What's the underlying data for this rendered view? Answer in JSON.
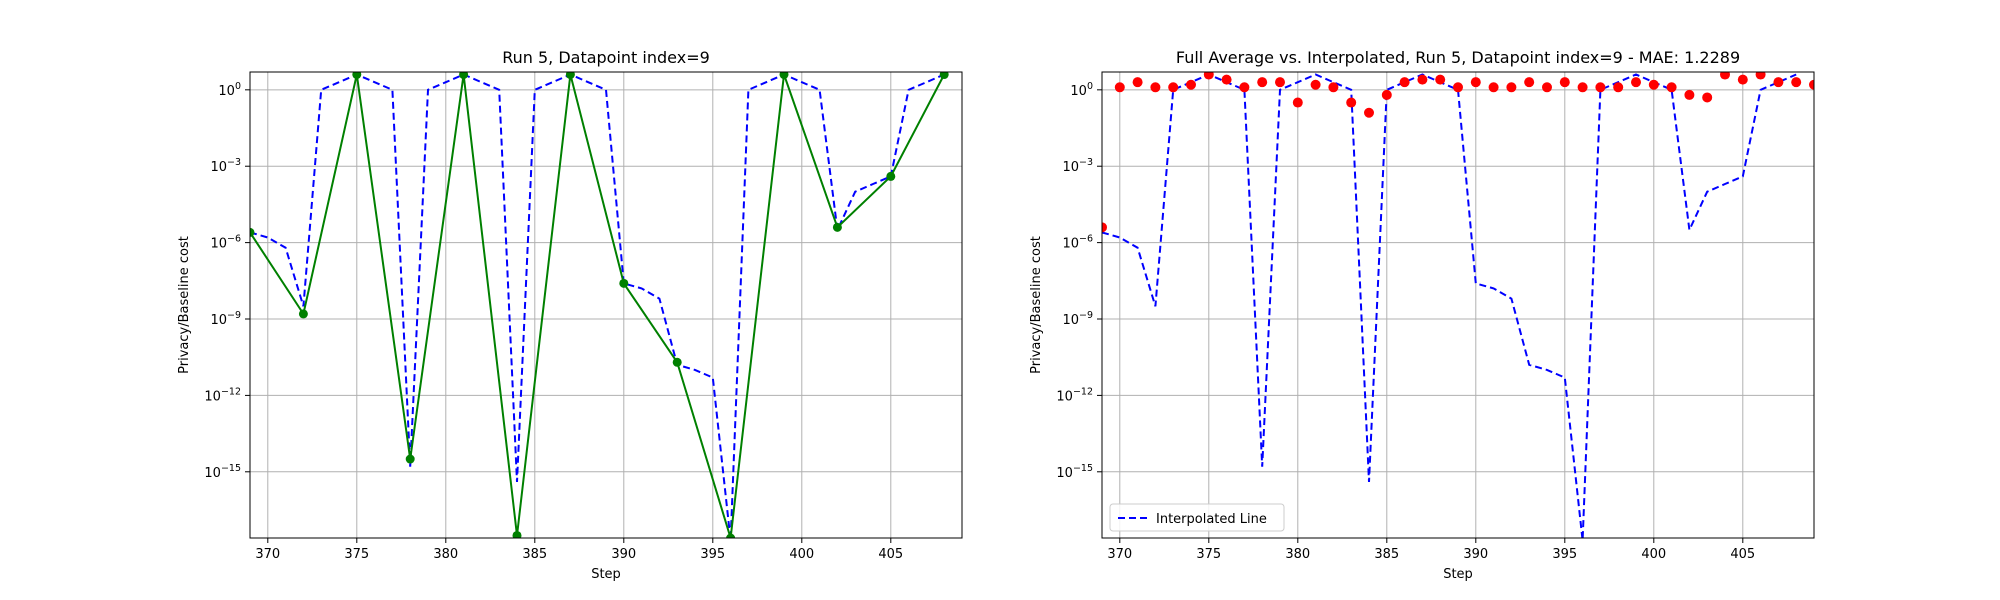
{
  "chart_data": [
    {
      "type": "line",
      "title": "Run 5, Datapoint index=9",
      "xlabel": "Step",
      "ylabel": "Privacy/Baseline cost",
      "yscale": "log",
      "xlim": [
        369,
        409
      ],
      "ylim_log10": [
        -17.6,
        0.7
      ],
      "xticks": [
        370,
        375,
        380,
        385,
        390,
        395,
        400,
        405
      ],
      "yticks_exp": [
        0,
        -3,
        -6,
        -9,
        -12,
        -15
      ],
      "grid": true,
      "series": [
        {
          "style": "dashed",
          "color": "#0000ff",
          "x": [
            369,
            370,
            371,
            372,
            373,
            374,
            375,
            376,
            377,
            378,
            379,
            380,
            381,
            382,
            383,
            384,
            385,
            386,
            387,
            388,
            389,
            390,
            391,
            392,
            393,
            394,
            395,
            396,
            397,
            398,
            399,
            400,
            401,
            402,
            403,
            404,
            405,
            406,
            407,
            408
          ],
          "log10_y": [
            -5.6,
            -5.8,
            -6.2,
            -8.5,
            0.0,
            0.3,
            0.6,
            0.3,
            0.0,
            -14.8,
            0.0,
            0.3,
            0.6,
            0.3,
            0.0,
            -15.4,
            0.0,
            0.3,
            0.6,
            0.3,
            0.0,
            -7.6,
            -7.8,
            -8.2,
            -10.8,
            -11.0,
            -11.3,
            -17.7,
            0.0,
            0.3,
            0.6,
            0.3,
            0.0,
            -5.5,
            -4.0,
            -3.7,
            -3.4,
            0.0,
            0.3,
            0.6
          ]
        },
        {
          "style": "solid-markers",
          "color": "#008000",
          "x": [
            369,
            372,
            375,
            378,
            381,
            384,
            387,
            390,
            393,
            396,
            399,
            402,
            405,
            408
          ],
          "log10_y": [
            -5.6,
            -8.8,
            0.6,
            -14.5,
            0.6,
            -17.5,
            0.6,
            -7.6,
            -10.7,
            -17.6,
            0.6,
            -5.4,
            -3.4,
            0.6
          ]
        }
      ]
    },
    {
      "type": "line",
      "title": "Full Average vs. Interpolated, Run 5, Datapoint index=9 - MAE: 1.2289",
      "xlabel": "Step",
      "ylabel": "Privacy/Baseline cost",
      "yscale": "log",
      "xlim": [
        369,
        409
      ],
      "ylim_log10": [
        -17.6,
        0.7
      ],
      "xticks": [
        370,
        375,
        380,
        385,
        390,
        395,
        400,
        405
      ],
      "yticks_exp": [
        0,
        -3,
        -6,
        -9,
        -12,
        -15
      ],
      "grid": true,
      "legend": {
        "position": "lower-left",
        "entries": [
          "Interpolated Line"
        ]
      },
      "series": [
        {
          "name": "Interpolated Line",
          "style": "dashed",
          "color": "#0000ff",
          "x": [
            369,
            370,
            371,
            372,
            373,
            374,
            375,
            376,
            377,
            378,
            379,
            380,
            381,
            382,
            383,
            384,
            385,
            386,
            387,
            388,
            389,
            390,
            391,
            392,
            393,
            394,
            395,
            396,
            397,
            398,
            399,
            400,
            401,
            402,
            403,
            404,
            405,
            406,
            407,
            408
          ],
          "log10_y": [
            -5.6,
            -5.8,
            -6.2,
            -8.5,
            0.0,
            0.3,
            0.6,
            0.3,
            0.0,
            -14.8,
            0.0,
            0.3,
            0.6,
            0.3,
            0.0,
            -15.4,
            0.0,
            0.3,
            0.6,
            0.3,
            0.0,
            -7.6,
            -7.8,
            -8.2,
            -10.8,
            -11.0,
            -11.3,
            -17.7,
            0.0,
            0.3,
            0.6,
            0.3,
            0.0,
            -5.5,
            -4.0,
            -3.7,
            -3.4,
            0.0,
            0.3,
            0.6
          ]
        },
        {
          "style": "scatter",
          "color": "#ff0000",
          "x": [
            369,
            370,
            371,
            372,
            373,
            374,
            375,
            376,
            377,
            378,
            379,
            380,
            381,
            382,
            383,
            384,
            385,
            386,
            387,
            388,
            389,
            390,
            391,
            392,
            393,
            394,
            395,
            396,
            397,
            398,
            399,
            400,
            401,
            402,
            403,
            404,
            405,
            406,
            407,
            408,
            409
          ],
          "log10_y": [
            -5.4,
            0.1,
            0.3,
            0.1,
            0.1,
            0.2,
            0.6,
            0.4,
            0.1,
            0.3,
            0.3,
            -0.5,
            0.2,
            0.1,
            -0.5,
            -0.9,
            -0.2,
            0.3,
            0.4,
            0.4,
            0.1,
            0.3,
            0.1,
            0.1,
            0.3,
            0.1,
            0.3,
            0.1,
            0.1,
            0.1,
            0.3,
            0.2,
            0.1,
            -0.2,
            -0.3,
            0.6,
            0.4,
            0.6,
            0.3,
            0.3,
            0.2
          ]
        }
      ]
    }
  ]
}
